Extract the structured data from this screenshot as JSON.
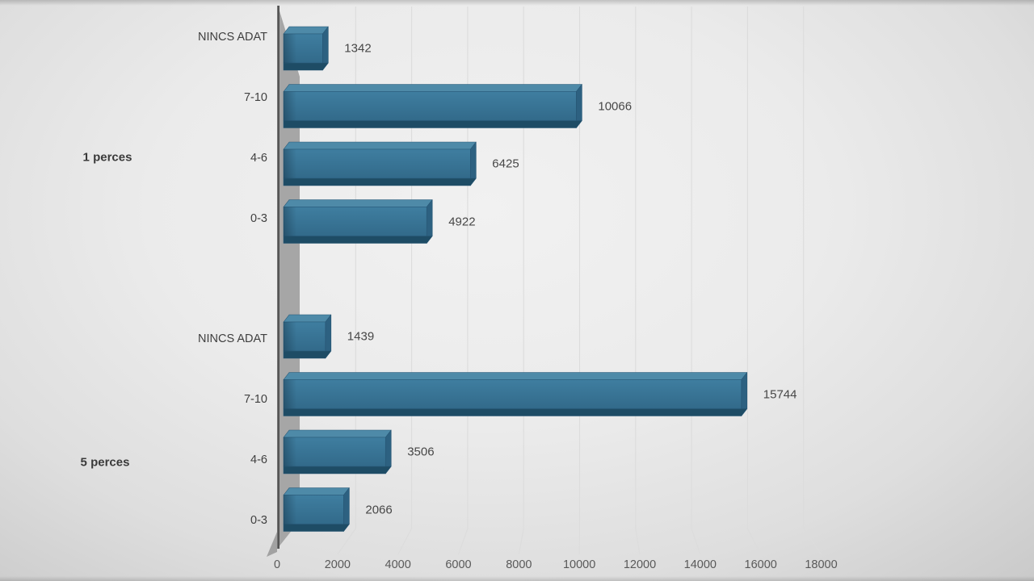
{
  "chart_data": {
    "type": "bar",
    "orientation": "horizontal",
    "title": "",
    "xlabel": "",
    "ylabel": "",
    "legend": false,
    "grid": true,
    "x_axis": {
      "min": 0,
      "max": 18000,
      "tick_step": 2000,
      "tick_labels": [
        "0",
        "2000",
        "4000",
        "6000",
        "8000",
        "10000",
        "12000",
        "14000",
        "16000",
        "18000"
      ]
    },
    "groups": [
      {
        "label": "1 perces",
        "categories": [
          "NINCS ADAT",
          "7-10",
          "4-6",
          "0-3"
        ],
        "values": [
          1342,
          10066,
          6425,
          4922
        ]
      },
      {
        "label": "5 perces",
        "categories": [
          "NINCS ADAT",
          "7-10",
          "4-6",
          "0-3"
        ],
        "values": [
          1439,
          15744,
          3506,
          2066
        ]
      }
    ],
    "colors": {
      "bar_front": "#3f7ea0",
      "bar_front_dark": "#326a8a",
      "bar_top": "#4e8aa8",
      "bar_end": "#2d6181",
      "bar_bottom": "#1e4c65",
      "bar_outline": "#275674",
      "wall": "#a6a6a6",
      "floor_corner": "#a2a2a2",
      "axis_line": "#555555",
      "gridline": "#dcdcdc",
      "category_text": "#3f3f3f",
      "tick_text": "#595959",
      "value_text": "#474747",
      "group_text": "#3a3a3a"
    }
  }
}
